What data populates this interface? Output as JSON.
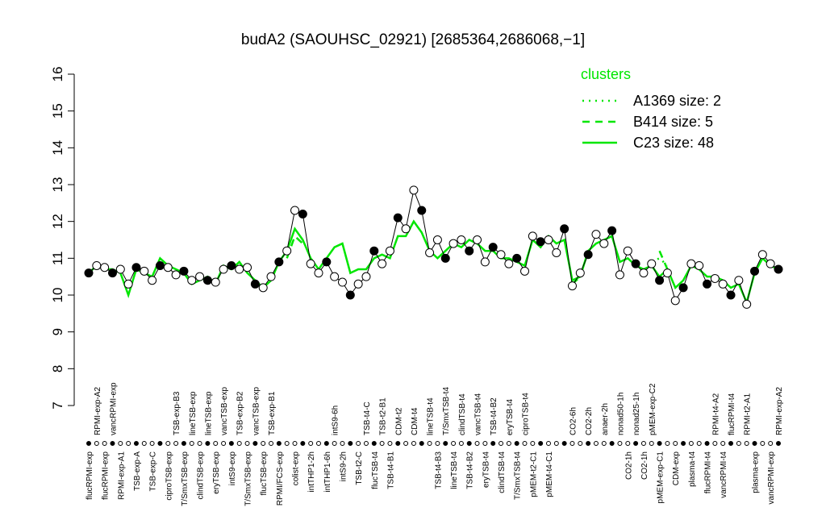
{
  "chart_data": {
    "type": "line",
    "title": "budA2 (SAOUHSC_02921) [2685364,2686068,−1]",
    "categories": [
      "flucRPMI-exp",
      "RPMI-exp-A2",
      "flucRPMI-exp",
      "vancRPMI-exp",
      "RPMI-exp-A1",
      null,
      "TSB-exp-A",
      null,
      "TSB-exp-C",
      null,
      "ciproTSB-exp",
      "TSB-exp-B3",
      "T/SmxTSB-exp",
      "lineTSB-exp",
      "clindTSB-exp",
      "lineTSB-exp",
      "eryTSB-exp",
      "vancTSB-exp",
      "intS9-exp",
      "TSB-exp-B2",
      "T/SmxTSB-exp",
      "vancTSB-exp",
      "flucTSB-exp",
      "TSB-exp-B1",
      "RPMI/FCS-exp",
      null,
      "colist-exp",
      null,
      "intTHP1-2h",
      null,
      "intTHP1-6h",
      "intS9-6h",
      "intS9-2h",
      null,
      "TSB-t2-C",
      "TSB-t4-C",
      "flucTSB-t4",
      "TSB-t2-B1",
      "TSB-t4-B1",
      "CDM-t2",
      null,
      "CDM-t4",
      null,
      "lineTSB-t4",
      "TSB-t4-B3",
      "T/SmxTSB-t4",
      "lineTSB-t4",
      "clindTSB-t4",
      "TSB-t4-B2",
      "vancTSB-t4",
      "eryTSB-t4",
      "TSB-t4-B2",
      "clindTSB-t4",
      "eryTSB-t4",
      "T/SmxTSB-t4",
      "ciproTSB-t4",
      "pMEM-t2-C1",
      null,
      "pMEM-t4-C1",
      null,
      null,
      "CO2-6h",
      null,
      "CO2-2h",
      null,
      "anaer-2h",
      null,
      "nonad50-1h",
      "CO2-1h",
      "nonad25-1h",
      "CO2-1h",
      "pMEM-exp-C2",
      "pMEM-exp-C1",
      null,
      "CDM-exp",
      null,
      "plasma-t4",
      null,
      "flucRPMI-t4",
      "RPMI-t4-A2",
      "vancRPMI-t4",
      "flucRPMI-t4",
      null,
      "RPMI-t2-A1",
      "plasma-exp",
      null,
      "vancRPMI-exp",
      "RPMI-exp-A2"
    ],
    "values": [
      10.6,
      10.8,
      10.75,
      10.6,
      10.7,
      10.3,
      10.75,
      10.65,
      10.4,
      10.8,
      10.75,
      10.55,
      10.65,
      10.4,
      10.5,
      10.4,
      10.35,
      10.7,
      10.8,
      10.7,
      10.75,
      10.3,
      10.2,
      10.5,
      10.9,
      11.2,
      12.3,
      12.2,
      10.85,
      10.6,
      10.9,
      10.5,
      10.35,
      10.0,
      10.3,
      10.5,
      11.2,
      10.85,
      11.2,
      12.1,
      11.8,
      12.85,
      12.3,
      11.15,
      11.5,
      11.0,
      11.4,
      11.5,
      11.2,
      11.5,
      10.9,
      11.3,
      11.1,
      10.85,
      11.0,
      10.65,
      11.6,
      11.45,
      11.5,
      11.15,
      11.8,
      10.25,
      10.6,
      11.1,
      11.65,
      11.4,
      11.75,
      10.55,
      11.2,
      10.85,
      10.6,
      10.85,
      10.4,
      10.6,
      9.85,
      10.2,
      10.85,
      10.8,
      10.3,
      10.45,
      10.3,
      10.0,
      10.4,
      9.75,
      10.65,
      11.1,
      10.85,
      10.7
    ],
    "series": [
      {
        "name": "A1369 size: 2",
        "color": "#00e600",
        "dash": "dotted",
        "values": [
          null,
          null,
          null,
          null,
          null,
          null,
          null,
          null,
          null,
          null,
          null,
          null,
          null,
          null,
          null,
          null,
          null,
          null,
          null,
          null,
          null,
          null,
          null,
          null,
          null,
          null,
          null,
          null,
          null,
          null,
          null,
          null,
          null,
          null,
          null,
          null,
          null,
          null,
          null,
          null,
          null,
          null,
          null,
          null,
          null,
          null,
          null,
          null,
          null,
          null,
          null,
          null,
          null,
          null,
          null,
          null,
          null,
          null,
          null,
          null,
          null,
          null,
          null,
          null,
          null,
          null,
          null,
          null,
          null,
          null,
          null,
          10.9,
          11.0,
          10.8,
          null,
          null,
          null,
          null,
          null,
          null,
          null,
          null,
          null,
          null,
          null,
          null,
          null,
          null
        ]
      },
      {
        "name": "B414 size: 5",
        "color": "#00e600",
        "dash": "dashed",
        "values": [
          null,
          null,
          null,
          null,
          null,
          null,
          null,
          null,
          null,
          null,
          null,
          null,
          null,
          null,
          null,
          null,
          null,
          null,
          null,
          null,
          null,
          null,
          null,
          null,
          null,
          11.0,
          11.6,
          11.4,
          null,
          null,
          null,
          null,
          null,
          null,
          null,
          null,
          null,
          null,
          null,
          null,
          null,
          null,
          null,
          null,
          null,
          null,
          null,
          null,
          null,
          null,
          null,
          null,
          null,
          null,
          null,
          null,
          null,
          null,
          null,
          null,
          null,
          10.3,
          10.5,
          null,
          null,
          null,
          null,
          null,
          null,
          null,
          null,
          null,
          11.2,
          10.7,
          null,
          null,
          null,
          null,
          null,
          null,
          null,
          null,
          null,
          null,
          null,
          null,
          null,
          null
        ]
      },
      {
        "name": "C23 size: 48",
        "color": "#00e600",
        "dash": "solid",
        "values": [
          10.6,
          10.8,
          10.7,
          10.7,
          10.6,
          10.0,
          10.7,
          10.6,
          10.5,
          11.0,
          10.8,
          10.7,
          10.6,
          10.3,
          10.4,
          10.5,
          10.3,
          10.8,
          10.7,
          10.9,
          10.6,
          10.4,
          10.2,
          10.4,
          10.9,
          11.2,
          11.8,
          11.5,
          11.0,
          10.7,
          11.0,
          11.3,
          11.4,
          10.6,
          10.7,
          10.7,
          11.0,
          11.1,
          11.0,
          11.6,
          11.6,
          12.0,
          11.7,
          11.2,
          11.0,
          11.2,
          11.4,
          11.3,
          11.5,
          11.4,
          11.2,
          11.2,
          11.0,
          11.0,
          10.9,
          10.8,
          11.5,
          11.3,
          11.6,
          11.4,
          11.5,
          10.4,
          10.5,
          11.2,
          11.4,
          11.5,
          11.6,
          10.9,
          11.0,
          10.8,
          10.7,
          10.8,
          10.5,
          10.7,
          10.2,
          10.4,
          10.8,
          10.7,
          10.5,
          10.5,
          10.4,
          10.2,
          10.3,
          9.8,
          10.6,
          11.0,
          10.8,
          10.7
        ]
      }
    ],
    "legend_title": "clusters",
    "ylim": [
      7,
      16
    ],
    "yticks": [
      7,
      8,
      9,
      10,
      11,
      12,
      13,
      14,
      15,
      16
    ]
  }
}
